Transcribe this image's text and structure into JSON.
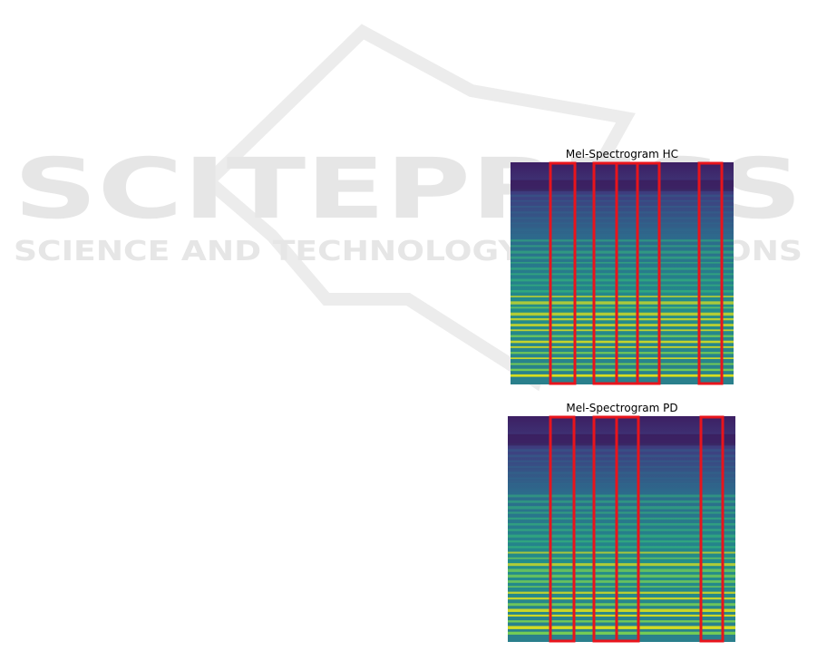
{
  "watermark": {
    "title": "SCITEPRESS",
    "subtitle": "SCIENCE AND TECHNOLOGY PUBLICATIONS"
  },
  "figures": [
    {
      "title": "Mel-Spectrogram HC"
    },
    {
      "title": "Mel-Spectrogram PD"
    }
  ]
}
